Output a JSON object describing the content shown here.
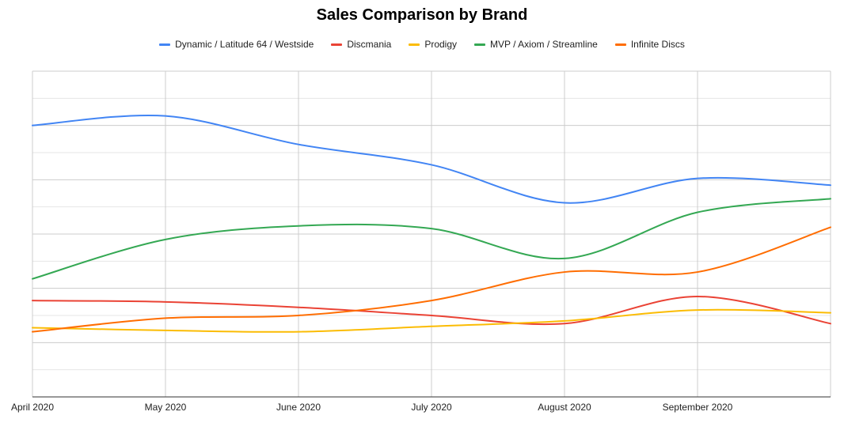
{
  "chart_data": {
    "type": "line",
    "title": "Sales Comparison by Brand",
    "xlabel": "",
    "ylabel": "",
    "categories": [
      "April 2020",
      "May 2020",
      "June 2020",
      "July 2020",
      "August 2020",
      "September 2020",
      ""
    ],
    "ylim": [
      0,
      120
    ],
    "grid": true,
    "legend_position": "top",
    "series": [
      {
        "name": "Dynamic / Latitude 64 / Westside",
        "color": "#4285f4",
        "values": [
          100,
          103.5,
          93,
          85.5,
          71.5,
          80.5,
          78
        ]
      },
      {
        "name": "Discmania",
        "color": "#ea4335",
        "values": [
          35.5,
          35,
          33,
          30,
          27,
          37,
          27
        ]
      },
      {
        "name": "Prodigy",
        "color": "#fbbc04",
        "values": [
          25.5,
          24.5,
          24,
          26,
          28,
          32,
          31
        ]
      },
      {
        "name": "MVP / Axiom / Streamline",
        "color": "#34a853",
        "values": [
          43.5,
          58,
          63,
          62,
          51,
          68,
          73
        ]
      },
      {
        "name": "Infinite Discs",
        "color": "#ff6d01",
        "values": [
          24,
          29,
          30,
          35.5,
          46,
          46,
          62.5
        ]
      }
    ]
  }
}
